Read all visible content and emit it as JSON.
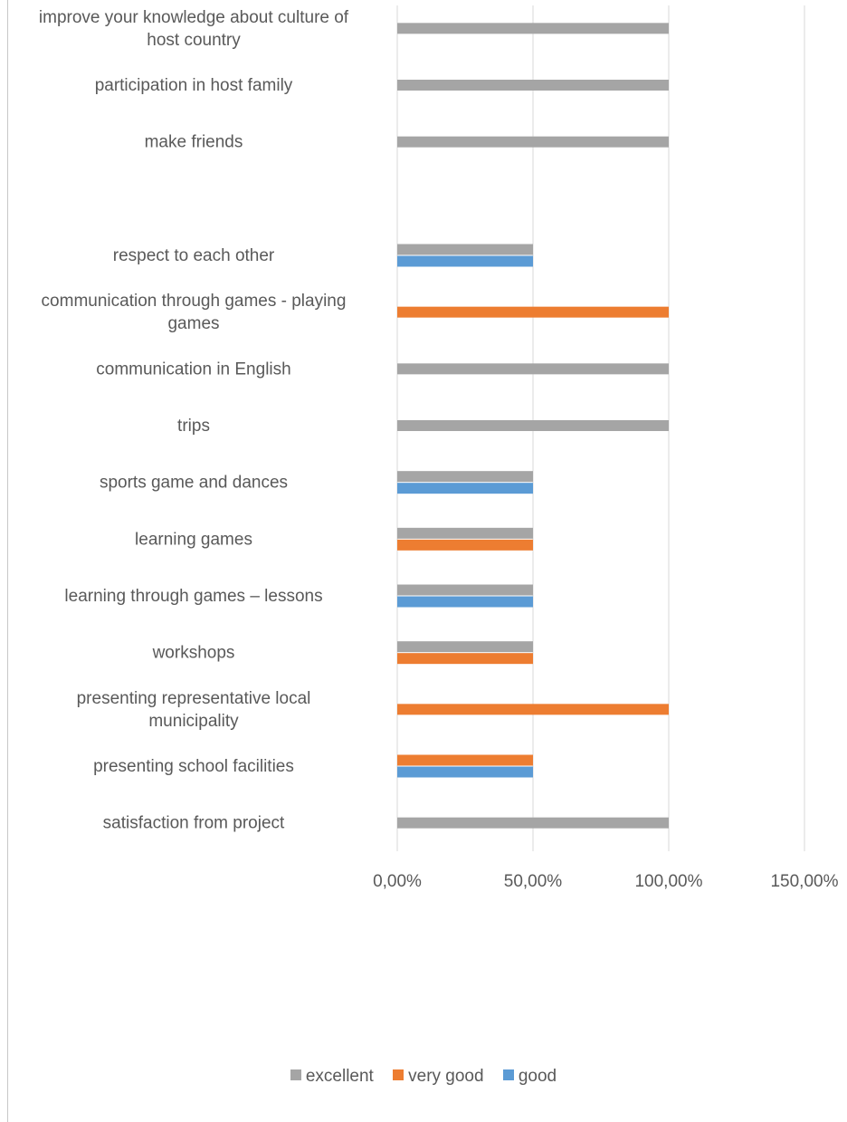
{
  "colors": {
    "excellent": "#a5a5a5",
    "very_good": "#ed7d31",
    "good": "#5b9bd5",
    "grid": "#d9d9d9",
    "text": "#595959"
  },
  "legend": [
    {
      "name": "excellent",
      "color": "#a5a5a5"
    },
    {
      "name": "very good",
      "color": "#ed7d31"
    },
    {
      "name": "good",
      "color": "#5b9bd5"
    }
  ],
  "chart_data": {
    "type": "bar",
    "orientation": "horizontal",
    "legend_position": "bottom",
    "grid": true,
    "xlim": [
      0,
      1.5
    ],
    "x_ticks": [
      0,
      0.5,
      1.0,
      1.5
    ],
    "x_tick_labels": [
      "0,00%",
      "50,00%",
      "100,00%",
      "150,00%"
    ],
    "categories": [
      "improve your knowledge about culture of host country",
      "participation in host family",
      "make friends",
      "",
      "respect  to each other",
      "communication through games - playing games",
      "communication in English",
      "trips",
      "sports game and dances",
      "learning games",
      "learning through games – lessons",
      "workshops",
      "presenting representative local municipality",
      "presenting school facilities",
      "satisfaction from project"
    ],
    "category_labels": [
      [
        "improve your knowledge about culture of",
        "host country"
      ],
      [
        "participation in host family"
      ],
      [
        "make friends"
      ],
      [],
      [
        "respect  to each other"
      ],
      [
        "communication through games - playing",
        "games"
      ],
      [
        "communication in English"
      ],
      [
        "trips"
      ],
      [
        "sports game and dances"
      ],
      [
        "learning games"
      ],
      [
        "learning through games – lessons"
      ],
      [
        "workshops"
      ],
      [
        "presenting representative local",
        "municipality"
      ],
      [
        "presenting school facilities"
      ],
      [
        "satisfaction from project"
      ]
    ],
    "series": [
      {
        "name": "excellent",
        "values": [
          1.0,
          1.0,
          1.0,
          null,
          0.5,
          null,
          1.0,
          1.0,
          0.5,
          0.5,
          0.5,
          0.5,
          null,
          null,
          1.0
        ]
      },
      {
        "name": "very good",
        "values": [
          null,
          null,
          null,
          null,
          null,
          1.0,
          null,
          null,
          null,
          0.5,
          null,
          0.5,
          1.0,
          0.5,
          null
        ]
      },
      {
        "name": "good",
        "values": [
          null,
          null,
          null,
          null,
          0.5,
          null,
          null,
          null,
          0.5,
          null,
          0.5,
          null,
          null,
          0.5,
          null
        ]
      }
    ]
  }
}
